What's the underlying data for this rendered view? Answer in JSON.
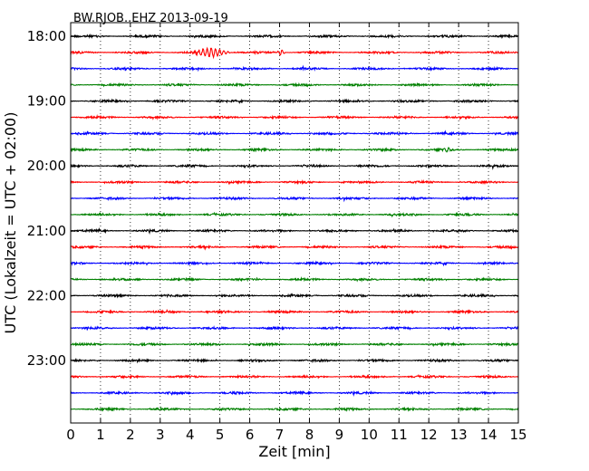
{
  "chart_data": {
    "type": "line",
    "title": "BW.RJOB..EHZ 2013-09-19",
    "xlabel": "Zeit  [min]",
    "ylabel": "UTC (Lokalzeit = UTC + 02:00)",
    "xlim": [
      0,
      15
    ],
    "x_ticks": [
      "0",
      "1",
      "2",
      "3",
      "4",
      "5",
      "6",
      "7",
      "8",
      "9",
      "10",
      "11",
      "12",
      "13",
      "14",
      "15"
    ],
    "y_ticks": [
      "18:00",
      "19:00",
      "20:00",
      "21:00",
      "22:00",
      "23:00"
    ],
    "grid": "vertical-dotted",
    "color_cycle": [
      "#000000",
      "#ff0000",
      "#0000ff",
      "#008000"
    ],
    "trace_count": 24,
    "trace_interval_minutes": 15,
    "events": [
      {
        "trace": 1,
        "start_min": 4.0,
        "end_min": 5.4,
        "amplitude": "high"
      },
      {
        "trace": 1,
        "start_min": 6.9,
        "end_min": 7.2,
        "amplitude": "medium"
      },
      {
        "trace": 7,
        "start_min": 12.4,
        "end_min": 12.8,
        "amplitude": "low"
      }
    ]
  }
}
